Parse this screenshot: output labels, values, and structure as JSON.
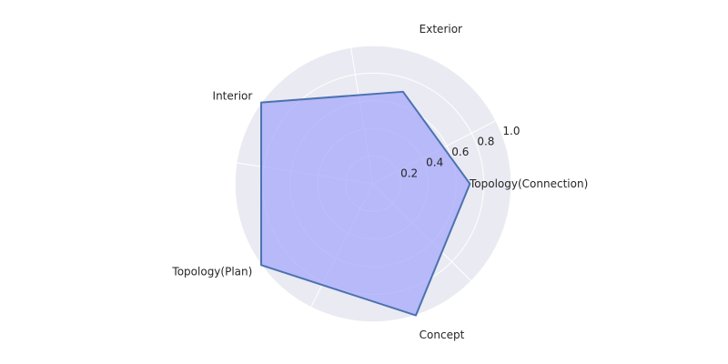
{
  "chart_data": {
    "type": "radar",
    "categories": [
      "Topology(Connection)",
      "Exterior",
      "Interior",
      "Topology(Plan)",
      "Concept"
    ],
    "values": [
      0.7,
      0.7,
      1.0,
      1.0,
      1.0
    ],
    "rticks": [
      "0.2",
      "0.4",
      "0.6",
      "0.8",
      "1.0"
    ],
    "rtick_values": [
      0.2,
      0.4,
      0.6,
      0.8,
      1.0
    ],
    "rlim": [
      0,
      1.0
    ],
    "grid": true,
    "colors": {
      "background": "#eaeaf2",
      "grid": "#ffffff",
      "fill": "#a5a8fb",
      "line": "#4c72b0"
    }
  }
}
